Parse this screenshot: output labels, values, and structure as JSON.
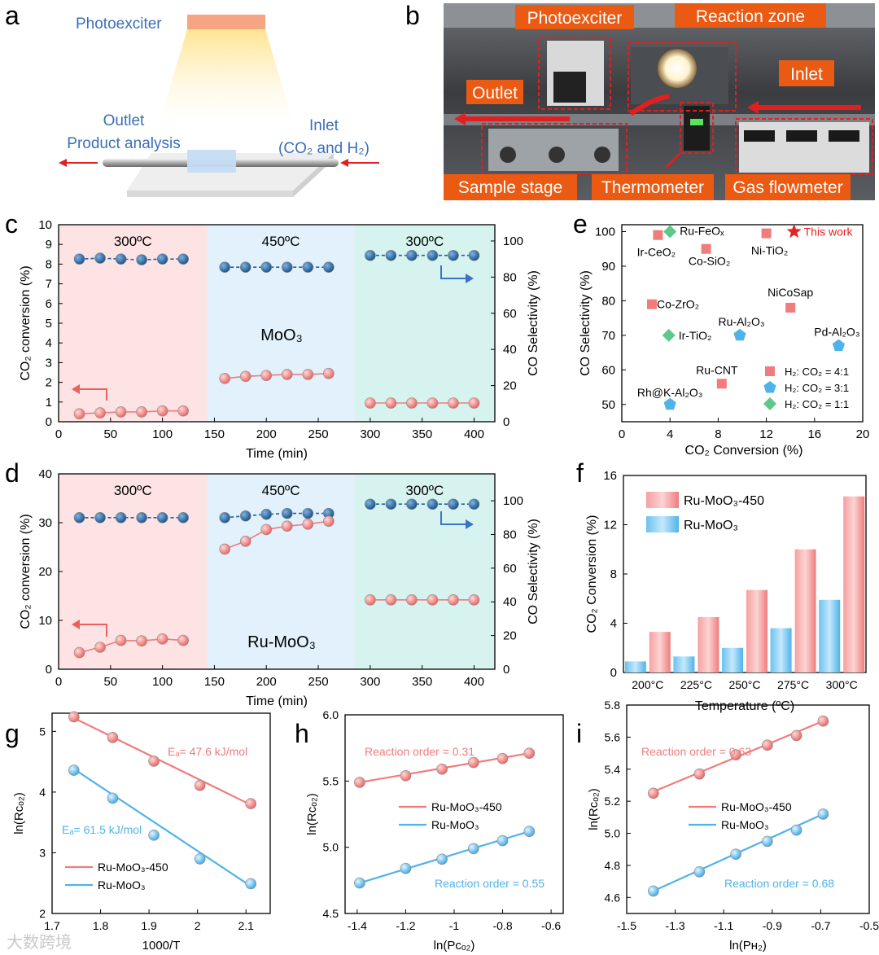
{
  "colors": {
    "red": "#f07c7c",
    "red_dark": "#e8615f",
    "blue_dark": "#1f5f9e",
    "blue_light": "#4fb3ea",
    "green": "#5cc98a",
    "panel_pink": "#fde3e3",
    "panel_blue": "#e2f1fb",
    "panel_cyan": "#d6f3ef",
    "orange_label": "#ea5a12",
    "arrow_blue": "#3b73c4",
    "text_blue": "#3a6fb5"
  },
  "panel_a": {
    "letter": "a",
    "photoexciter": "Photoexciter",
    "outlet_line1": "Outlet",
    "outlet_line2": "Product analysis",
    "inlet_line1": "Inlet",
    "inlet_line2": "(CO₂ and H₂)"
  },
  "panel_b": {
    "letter": "b",
    "labels": {
      "photoexciter": "Photoexciter",
      "reaction_zone": "Reaction zone",
      "outlet": "Outlet",
      "inlet": "Inlet",
      "sample_stage": "Sample stage",
      "thermometer": "Thermometer",
      "gas_flowmeter": "Gas flowmeter"
    }
  },
  "chart_data": [
    {
      "id": "c",
      "letter": "c",
      "type": "line",
      "xlabel": "Time (min)",
      "ylabel_left": "CO₂ conversion (%)",
      "ylabel_right": "CO Selectivity (%)",
      "xlim": [
        0,
        420
      ],
      "ylim_left": [
        0,
        10
      ],
      "ylim_right": [
        0,
        109
      ],
      "xticks": [
        0,
        50,
        100,
        150,
        200,
        250,
        300,
        350,
        400
      ],
      "yticks_left": [
        0,
        1,
        2,
        3,
        4,
        5,
        6,
        7,
        8,
        9,
        10
      ],
      "yticks_right": [
        0,
        20,
        40,
        60,
        80,
        100
      ],
      "regions": [
        {
          "label": "300ºC",
          "x": [
            0,
            143
          ],
          "color": "#fde3e3"
        },
        {
          "label": "450ºC",
          "x": [
            143,
            285
          ],
          "color": "#e2f1fb"
        },
        {
          "label": "300ºC",
          "x": [
            285,
            420
          ],
          "color": "#d6f3ef"
        }
      ],
      "annotation": "MoO₃",
      "series": [
        {
          "axis": "right",
          "color": "#1f5f9e",
          "x": [
            20,
            40,
            60,
            80,
            100,
            120,
            160,
            180,
            200,
            220,
            240,
            260,
            300,
            320,
            340,
            360,
            380,
            400
          ],
          "values": [
            90,
            90.5,
            90,
            89.6,
            90,
            90,
            85.5,
            85.5,
            85.5,
            85.5,
            85.5,
            85.5,
            92,
            92,
            92,
            92,
            92,
            92
          ]
        },
        {
          "axis": "left",
          "color": "#f07c7c",
          "x": [
            20,
            40,
            60,
            80,
            100,
            120,
            160,
            180,
            200,
            220,
            240,
            260,
            300,
            320,
            340,
            360,
            380,
            400
          ],
          "values": [
            0.4,
            0.45,
            0.5,
            0.5,
            0.55,
            0.55,
            2.2,
            2.3,
            2.35,
            2.4,
            2.4,
            2.45,
            0.95,
            0.95,
            0.95,
            0.95,
            0.95,
            0.95
          ]
        }
      ]
    },
    {
      "id": "d",
      "letter": "d",
      "type": "line",
      "xlabel": "Time (min)",
      "ylabel_left": "CO₂ conversion (%)",
      "ylabel_right": "CO Selectivity (%)",
      "xlim": [
        0,
        420
      ],
      "ylim_left": [
        0,
        40
      ],
      "ylim_right": [
        0,
        116
      ],
      "xticks": [
        0,
        50,
        100,
        150,
        200,
        250,
        300,
        350,
        400
      ],
      "yticks_left": [
        0,
        10,
        20,
        30,
        40
      ],
      "yticks_right": [
        0,
        20,
        40,
        60,
        80,
        100
      ],
      "regions": [
        {
          "label": "300ºC",
          "x": [
            0,
            143
          ],
          "color": "#fde3e3"
        },
        {
          "label": "450ºC",
          "x": [
            143,
            285
          ],
          "color": "#e2f1fb"
        },
        {
          "label": "300ºC",
          "x": [
            285,
            420
          ],
          "color": "#d6f3ef"
        }
      ],
      "annotation": "Ru-MoO₃",
      "series": [
        {
          "axis": "right",
          "color": "#1f5f9e",
          "x": [
            20,
            40,
            60,
            80,
            100,
            120,
            160,
            180,
            200,
            220,
            240,
            260,
            300,
            320,
            340,
            360,
            380,
            400
          ],
          "values": [
            90,
            90,
            90,
            90,
            90,
            90,
            90,
            91,
            92,
            92.5,
            92.5,
            92.5,
            98,
            98,
            98,
            98,
            98,
            98
          ]
        },
        {
          "axis": "left",
          "color": "#f07c7c",
          "x": [
            20,
            40,
            60,
            80,
            100,
            120,
            160,
            180,
            200,
            220,
            240,
            260,
            300,
            320,
            340,
            360,
            380,
            400
          ],
          "values": [
            3.4,
            4.5,
            5.9,
            5.8,
            6.2,
            5.9,
            24.6,
            26.2,
            28.6,
            29.3,
            29.7,
            30.3,
            14.2,
            14.2,
            14.2,
            14.2,
            14.2,
            14.2
          ]
        }
      ]
    },
    {
      "id": "e",
      "letter": "e",
      "type": "scatter",
      "xlabel": "CO₂ Conversion (%)",
      "ylabel": "CO Selectivity (%)",
      "xlim": [
        0,
        20
      ],
      "ylim": [
        45,
        102
      ],
      "xticks": [
        0,
        4,
        8,
        12,
        16,
        20
      ],
      "yticks": [
        50,
        60,
        70,
        80,
        90,
        100
      ],
      "points": [
        {
          "label": "Ir-CeO₂",
          "x": 3.0,
          "y": 99,
          "shape": "square"
        },
        {
          "label": "Ru-FeOₓ",
          "x": 4.0,
          "y": 100,
          "shape": "diamond"
        },
        {
          "label": "Co-SiO₂",
          "x": 7.0,
          "y": 95,
          "shape": "square"
        },
        {
          "label": "Ni-TiO₂",
          "x": 12.0,
          "y": 99.5,
          "shape": "square"
        },
        {
          "label": "This work",
          "x": 14.3,
          "y": 100,
          "shape": "star"
        },
        {
          "label": "Co-ZrO₂",
          "x": 2.5,
          "y": 79,
          "shape": "square"
        },
        {
          "label": "NiCoSap",
          "x": 14.0,
          "y": 78,
          "shape": "square"
        },
        {
          "label": "Ir-TiO₂",
          "x": 3.9,
          "y": 70,
          "shape": "diamond"
        },
        {
          "label": "Ru-Al₂O₃",
          "x": 9.8,
          "y": 70,
          "shape": "pentagon"
        },
        {
          "label": "Pd-Al₂O₃",
          "x": 18.0,
          "y": 67,
          "shape": "pentagon"
        },
        {
          "label": "Ru-CNT",
          "x": 8.3,
          "y": 56,
          "shape": "square"
        },
        {
          "label": "Rh@K-Al₂O₃",
          "x": 4.0,
          "y": 50,
          "shape": "pentagon"
        }
      ],
      "legend": [
        {
          "label": "H₂: CO₂ = 4:1",
          "shape": "square"
        },
        {
          "label": "H₂: CO₂ = 3:1",
          "shape": "pentagon"
        },
        {
          "label": "H₂: CO₂ = 1:1",
          "shape": "diamond"
        }
      ]
    },
    {
      "id": "f",
      "letter": "f",
      "type": "bar",
      "xlabel": "Temperature (ºC)",
      "ylabel": "CO₂ Conversion (%)",
      "ylim": [
        0,
        16
      ],
      "yticks": [
        0,
        4,
        8,
        12,
        16
      ],
      "categories": [
        "200°C",
        "225°C",
        "250°C",
        "275°C",
        "300°C"
      ],
      "series": [
        {
          "name": "Ru-MoO₃-450",
          "values": [
            3.3,
            4.5,
            6.7,
            10.0,
            14.3
          ],
          "color": "#f07c7c"
        },
        {
          "name": "Ru-MoO₃",
          "values": [
            0.9,
            1.3,
            2.0,
            3.6,
            5.9
          ],
          "color": "#4fb3ea"
        }
      ]
    },
    {
      "id": "g",
      "letter": "g",
      "type": "scatter",
      "xlabel": "1000/T",
      "ylabel": "ln(Rᴄₒ₂)",
      "xlim": [
        1.7,
        2.15
      ],
      "ylim": [
        2,
        5.3
      ],
      "xticks": [
        1.7,
        1.8,
        1.9,
        2.0,
        2.1
      ],
      "yticks": [
        2,
        3,
        4,
        5
      ],
      "series": [
        {
          "name": "Ru-MoO₃-450",
          "x": [
            1.745,
            1.825,
            1.91,
            2.005,
            2.11
          ],
          "values": [
            5.24,
            4.9,
            4.51,
            4.11,
            3.81
          ],
          "fit": [
            [
              1.745,
              5.22
            ],
            [
              2.11,
              3.79
            ]
          ],
          "color": "#f07c7c",
          "note": "Eₐ= 47.6 kJ/mol"
        },
        {
          "name": "Ru-MoO₃",
          "x": [
            1.745,
            1.825,
            1.91,
            2.005,
            2.11
          ],
          "values": [
            4.36,
            3.9,
            3.29,
            2.9,
            2.49
          ],
          "fit": [
            [
              1.745,
              4.38
            ],
            [
              2.11,
              2.45
            ]
          ],
          "color": "#4fb3ea",
          "note": "Eₐ= 61.5 kJ/mol"
        }
      ]
    },
    {
      "id": "h",
      "letter": "h",
      "type": "scatter",
      "xlabel": "ln(Pᴄₒ₂)",
      "ylabel": "ln(Rᴄₒ₂)",
      "xlim": [
        -1.45,
        -0.55
      ],
      "ylim": [
        4.5,
        6.0
      ],
      "xticks": [
        -1.4,
        -1.2,
        -1.0,
        -0.8,
        -0.6
      ],
      "yticks": [
        4.5,
        5.0,
        5.5,
        6.0
      ],
      "series": [
        {
          "name": "Ru-MoO₃-450",
          "x": [
            -1.39,
            -1.2,
            -1.05,
            -0.92,
            -0.8,
            -0.69
          ],
          "values": [
            5.49,
            5.54,
            5.59,
            5.64,
            5.67,
            5.71
          ],
          "fit": [
            [
              -1.39,
              5.49
            ],
            [
              -0.69,
              5.71
            ]
          ],
          "color": "#f07c7c",
          "note": "Reaction order = 0.31"
        },
        {
          "name": "Ru-MoO₃",
          "x": [
            -1.39,
            -1.2,
            -1.05,
            -0.92,
            -0.8,
            -0.69
          ],
          "values": [
            4.73,
            4.84,
            4.91,
            4.99,
            5.05,
            5.12
          ],
          "fit": [
            [
              -1.39,
              4.73
            ],
            [
              -0.69,
              5.12
            ]
          ],
          "color": "#4fb3ea",
          "note": "Reaction order = 0.55"
        }
      ]
    },
    {
      "id": "i",
      "letter": "i",
      "type": "scatter",
      "xlabel": "ln(Pʜ₂)",
      "ylabel": "ln(Rᴄₒ₂)",
      "xlim": [
        -1.5,
        -0.5
      ],
      "ylim": [
        4.5,
        5.8
      ],
      "xticks": [
        -1.5,
        -1.3,
        -1.1,
        -0.9,
        -0.7,
        -0.5
      ],
      "xtick_labels": [
        "-1.5",
        "-1.3",
        "-1.1",
        "-0.9",
        "-0.7",
        "-0.5"
      ],
      "yticks": [
        4.6,
        4.8,
        5.0,
        5.2,
        5.4,
        5.6,
        5.8
      ],
      "series": [
        {
          "name": "Ru-MoO₃-450",
          "x": [
            -1.39,
            -1.2,
            -1.05,
            -0.92,
            -0.8,
            -0.69
          ],
          "values": [
            5.25,
            5.37,
            5.49,
            5.55,
            5.61,
            5.7
          ],
          "fit": [
            [
              -1.39,
              5.26
            ],
            [
              -0.69,
              5.7
            ]
          ],
          "color": "#f07c7c",
          "note": "Reaction order = 0.63"
        },
        {
          "name": "Ru-MoO₃",
          "x": [
            -1.39,
            -1.2,
            -1.05,
            -0.92,
            -0.8,
            -0.69
          ],
          "values": [
            4.64,
            4.76,
            4.87,
            4.95,
            5.02,
            5.12
          ],
          "fit": [
            [
              -1.39,
              4.64
            ],
            [
              -0.69,
              5.12
            ]
          ],
          "color": "#4fb3ea",
          "note": "Reaction order = 0.68"
        }
      ]
    }
  ],
  "watermark": "大数跨境"
}
